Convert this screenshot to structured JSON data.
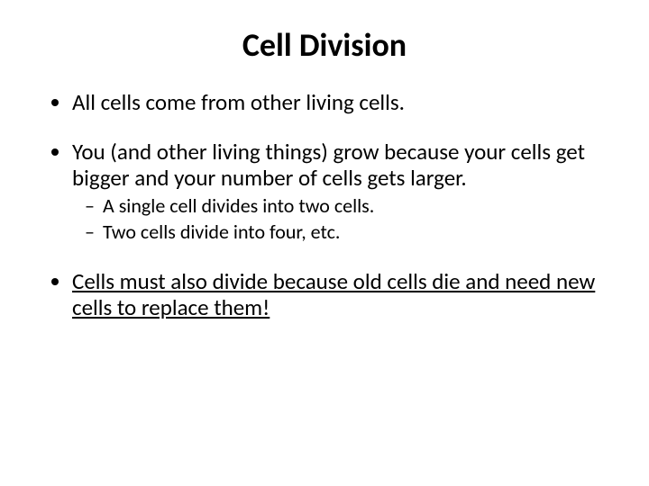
{
  "slide": {
    "title": "Cell Division",
    "title_fontsize": 36,
    "title_fontweight": 700,
    "body_fontsize_level1": 25,
    "body_fontsize_level2": 22,
    "text_color": "#000000",
    "background_color": "#ffffff",
    "bullets": [
      {
        "text": "All cells come from other living cells.",
        "underline": false,
        "children": []
      },
      {
        "text": "You (and other living things) grow because your cells get bigger and your number of cells gets larger.",
        "underline": false,
        "children": [
          {
            "text": "A single cell divides into two cells."
          },
          {
            "text": "Two cells divide into four, etc."
          }
        ]
      },
      {
        "text": "Cells must also divide because old cells die and need new cells to replace them!",
        "underline": true,
        "children": []
      }
    ]
  }
}
